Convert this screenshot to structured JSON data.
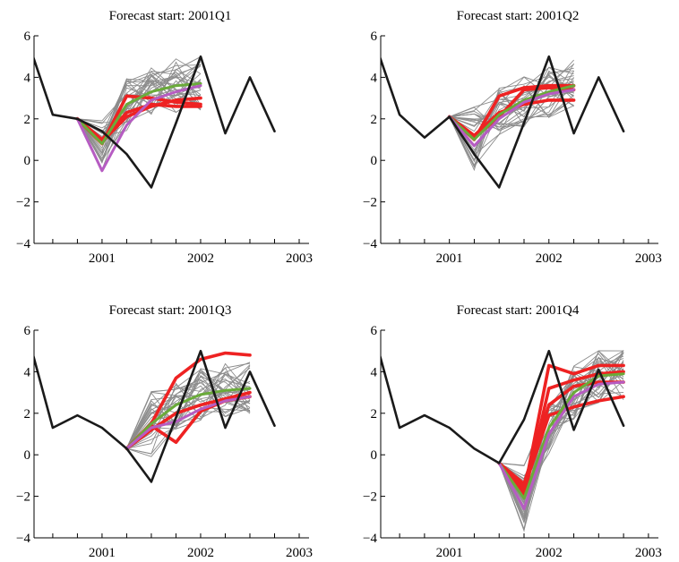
{
  "chart_data": [
    {
      "type": "line",
      "title": "Forecast start: 2001Q1",
      "xlabel": "",
      "ylabel": "",
      "xlim": [
        2000.31,
        2003.1
      ],
      "ylim": [
        -4,
        6
      ],
      "x_ticks": [
        "2001",
        "2002",
        "2003"
      ],
      "y_ticks": [
        "−4",
        "−2",
        "0",
        "2",
        "4",
        "6"
      ],
      "grid": false,
      "series": [
        {
          "role": "actual",
          "color": "#1a1a1a",
          "x": [
            "2000Q2",
            "2000Q3",
            "2000Q4",
            "2001Q1",
            "2001Q2",
            "2001Q3",
            "2001Q4",
            "2002Q1",
            "2002Q2",
            "2002Q3",
            "2002Q4"
          ],
          "values": [
            5.7,
            2.2,
            2.0,
            1.4,
            0.3,
            -1.3,
            1.8,
            5.0,
            1.3,
            4.0,
            1.4
          ]
        },
        {
          "role": "forecast-model",
          "color": "#ee2222",
          "x": [
            "2000Q4",
            "2001Q1",
            "2001Q2",
            "2001Q3",
            "2001Q4",
            "2002Q1"
          ],
          "values": [
            2.0,
            0.8,
            3.1,
            3.0,
            2.8,
            2.7
          ]
        },
        {
          "role": "forecast-model",
          "color": "#ee2222",
          "x": [
            "2000Q4",
            "2001Q1",
            "2001Q2",
            "2001Q3",
            "2001Q4",
            "2002Q1"
          ],
          "values": [
            2.0,
            0.9,
            2.1,
            2.6,
            2.9,
            3.0
          ]
        },
        {
          "role": "forecast-model",
          "color": "#ee2222",
          "x": [
            "2000Q4",
            "2001Q1",
            "2001Q2",
            "2001Q3",
            "2001Q4",
            "2002Q1"
          ],
          "values": [
            2.0,
            1.0,
            2.3,
            2.7,
            2.6,
            2.6
          ]
        },
        {
          "role": "forecast-average",
          "color": "#6aab3a",
          "x": [
            "2000Q4",
            "2001Q1",
            "2001Q2",
            "2001Q3",
            "2001Q4",
            "2002Q1"
          ],
          "values": [
            2.0,
            0.8,
            2.7,
            3.3,
            3.6,
            3.7
          ]
        },
        {
          "role": "forecast-average",
          "color": "#b65cc2",
          "x": [
            "2000Q4",
            "2001Q1",
            "2001Q2",
            "2001Q3",
            "2001Q4",
            "2002Q1"
          ],
          "values": [
            2.0,
            -0.5,
            1.7,
            2.9,
            3.3,
            3.6
          ]
        }
      ]
    },
    {
      "type": "line",
      "title": "Forecast start: 2001Q2",
      "xlabel": "",
      "ylabel": "",
      "xlim": [
        2000.31,
        2003.1
      ],
      "ylim": [
        -4,
        6
      ],
      "x_ticks": [
        "2001",
        "2002",
        "2003"
      ],
      "y_ticks": [
        "−4",
        "−2",
        "0",
        "2",
        "4",
        "6"
      ],
      "grid": false,
      "series": [
        {
          "role": "actual",
          "color": "#1a1a1a",
          "x": [
            "2000Q2",
            "2000Q3",
            "2000Q4",
            "2001Q1",
            "2001Q2",
            "2001Q3",
            "2001Q4",
            "2002Q1",
            "2002Q2",
            "2002Q3",
            "2002Q4"
          ],
          "values": [
            5.7,
            2.2,
            1.1,
            2.1,
            0.3,
            -1.3,
            1.8,
            5.0,
            1.3,
            4.0,
            1.4
          ]
        },
        {
          "role": "forecast-model",
          "color": "#ee2222",
          "x": [
            "2001Q1",
            "2001Q2",
            "2001Q3",
            "2001Q4",
            "2002Q1",
            "2002Q2"
          ],
          "values": [
            2.1,
            1.0,
            3.1,
            3.5,
            3.6,
            3.6
          ]
        },
        {
          "role": "forecast-model",
          "color": "#ee2222",
          "x": [
            "2001Q1",
            "2001Q2",
            "2001Q3",
            "2001Q4",
            "2002Q1",
            "2002Q2"
          ],
          "values": [
            2.1,
            1.2,
            2.3,
            2.7,
            2.9,
            2.9
          ]
        },
        {
          "role": "forecast-model",
          "color": "#ee2222",
          "x": [
            "2001Q1",
            "2001Q2",
            "2001Q3",
            "2001Q4",
            "2002Q1",
            "2002Q2"
          ],
          "values": [
            2.1,
            1.1,
            2.1,
            3.4,
            3.5,
            3.4
          ]
        },
        {
          "role": "forecast-average",
          "color": "#6aab3a",
          "x": [
            "2001Q1",
            "2001Q2",
            "2001Q3",
            "2001Q4",
            "2002Q1",
            "2002Q2"
          ],
          "values": [
            2.1,
            1.0,
            2.2,
            2.9,
            3.3,
            3.6
          ]
        },
        {
          "role": "forecast-average",
          "color": "#b65cc2",
          "x": [
            "2001Q1",
            "2001Q2",
            "2001Q3",
            "2001Q4",
            "2002Q1",
            "2002Q2"
          ],
          "values": [
            2.1,
            0.7,
            2.0,
            2.8,
            3.2,
            3.4
          ]
        }
      ]
    },
    {
      "type": "line",
      "title": "Forecast start: 2001Q3",
      "xlabel": "",
      "ylabel": "",
      "xlim": [
        2000.31,
        2003.1
      ],
      "ylim": [
        -4,
        6
      ],
      "x_ticks": [
        "2001",
        "2002",
        "2003"
      ],
      "y_ticks": [
        "−4",
        "−2",
        "0",
        "2",
        "4",
        "6"
      ],
      "grid": false,
      "series": [
        {
          "role": "actual",
          "color": "#1a1a1a",
          "x": [
            "2000Q2",
            "2000Q3",
            "2000Q4",
            "2001Q1",
            "2001Q2",
            "2001Q3",
            "2001Q4",
            "2002Q1",
            "2002Q2",
            "2002Q3",
            "2002Q4"
          ],
          "values": [
            5.7,
            1.3,
            1.9,
            1.3,
            0.3,
            -1.3,
            1.8,
            5.0,
            1.3,
            4.0,
            1.4
          ]
        },
        {
          "role": "forecast-model",
          "color": "#ee2222",
          "x": [
            "2001Q2",
            "2001Q3",
            "2001Q4",
            "2002Q1",
            "2002Q2",
            "2002Q3"
          ],
          "values": [
            0.3,
            1.5,
            3.7,
            4.6,
            4.9,
            4.8
          ]
        },
        {
          "role": "forecast-model",
          "color": "#ee2222",
          "x": [
            "2001Q2",
            "2001Q3",
            "2001Q4",
            "2002Q1",
            "2002Q2",
            "2002Q3"
          ],
          "values": [
            0.3,
            1.4,
            0.6,
            2.1,
            2.6,
            2.8
          ]
        },
        {
          "role": "forecast-model",
          "color": "#ee2222",
          "x": [
            "2001Q2",
            "2001Q3",
            "2001Q4",
            "2002Q1",
            "2002Q2",
            "2002Q3"
          ],
          "values": [
            0.3,
            1.2,
            2.0,
            2.4,
            2.7,
            3.0
          ]
        },
        {
          "role": "forecast-average",
          "color": "#6aab3a",
          "x": [
            "2001Q2",
            "2001Q3",
            "2001Q4",
            "2002Q1",
            "2002Q2",
            "2002Q3"
          ],
          "values": [
            0.3,
            1.5,
            2.4,
            2.9,
            3.1,
            3.2
          ]
        },
        {
          "role": "forecast-average",
          "color": "#b65cc2",
          "x": [
            "2001Q2",
            "2001Q3",
            "2001Q4",
            "2002Q1",
            "2002Q2",
            "2002Q3"
          ],
          "values": [
            0.3,
            1.3,
            1.6,
            2.2,
            2.6,
            2.8
          ]
        }
      ]
    },
    {
      "type": "line",
      "title": "Forecast start: 2001Q4",
      "xlabel": "",
      "ylabel": "",
      "xlim": [
        2000.31,
        2003.1
      ],
      "ylim": [
        -4,
        6
      ],
      "x_ticks": [
        "2001",
        "2002",
        "2003"
      ],
      "y_ticks": [
        "−4",
        "−2",
        "0",
        "2",
        "4",
        "6"
      ],
      "grid": false,
      "series": [
        {
          "role": "actual",
          "color": "#1a1a1a",
          "x": [
            "2000Q2",
            "2000Q3",
            "2000Q4",
            "2001Q1",
            "2001Q2",
            "2001Q3",
            "2001Q4",
            "2002Q1",
            "2002Q2",
            "2002Q3",
            "2002Q4"
          ],
          "values": [
            5.7,
            1.3,
            1.9,
            1.3,
            0.3,
            -0.4,
            1.7,
            5.0,
            1.2,
            4.1,
            1.4
          ]
        },
        {
          "role": "forecast-model",
          "color": "#ee2222",
          "x": [
            "2001Q3",
            "2001Q4",
            "2002Q1",
            "2002Q2",
            "2002Q3",
            "2002Q4"
          ],
          "values": [
            -0.4,
            -1.8,
            4.3,
            3.9,
            4.3,
            4.3
          ]
        },
        {
          "role": "forecast-model",
          "color": "#ee2222",
          "x": [
            "2001Q3",
            "2001Q4",
            "2002Q1",
            "2002Q2",
            "2002Q3",
            "2002Q4"
          ],
          "values": [
            -0.4,
            -2.0,
            3.2,
            3.6,
            3.9,
            4.0
          ]
        },
        {
          "role": "forecast-model",
          "color": "#ee2222",
          "x": [
            "2001Q3",
            "2001Q4",
            "2002Q1",
            "2002Q2",
            "2002Q3",
            "2002Q4"
          ],
          "values": [
            -0.4,
            -1.6,
            1.9,
            2.3,
            2.6,
            2.8
          ]
        },
        {
          "role": "forecast-model",
          "color": "#ee2222",
          "x": [
            "2001Q3",
            "2001Q4",
            "2002Q1",
            "2002Q2",
            "2002Q3",
            "2002Q4"
          ],
          "values": [
            -0.4,
            -1.4,
            2.4,
            3.3,
            3.5,
            3.5
          ]
        },
        {
          "role": "forecast-average",
          "color": "#6aab3a",
          "x": [
            "2001Q3",
            "2001Q4",
            "2002Q1",
            "2002Q2",
            "2002Q3",
            "2002Q4"
          ],
          "values": [
            -0.4,
            -2.1,
            1.3,
            3.0,
            3.8,
            3.9
          ]
        },
        {
          "role": "forecast-average",
          "color": "#b65cc2",
          "x": [
            "2001Q3",
            "2001Q4",
            "2002Q1",
            "2002Q2",
            "2002Q3",
            "2002Q4"
          ],
          "values": [
            -0.4,
            -2.6,
            1.0,
            2.8,
            3.4,
            3.5
          ]
        }
      ]
    }
  ]
}
